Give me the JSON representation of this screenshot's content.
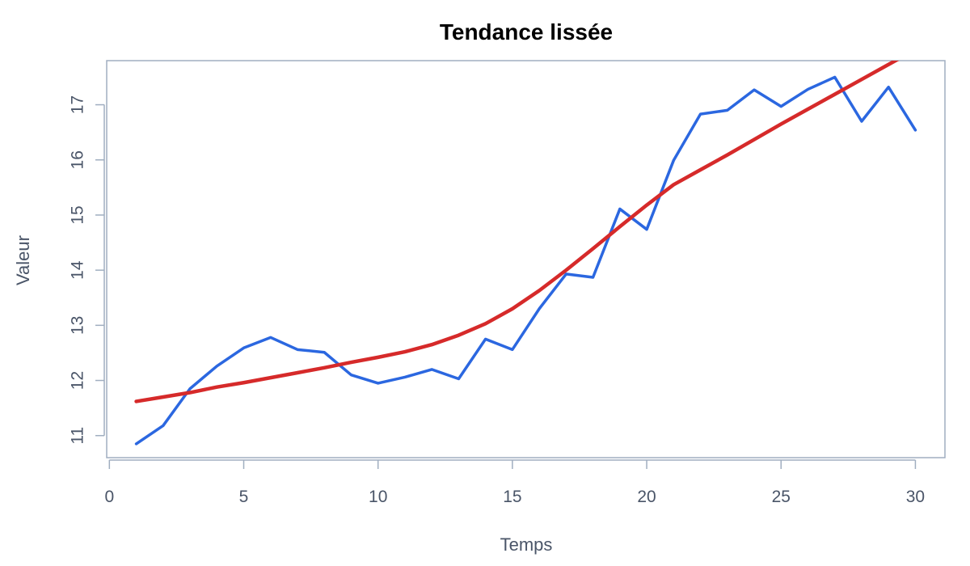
{
  "chart_data": {
    "type": "line",
    "title": "Tendance lissée",
    "xlabel": "Temps",
    "ylabel": "Valeur",
    "xlim": [
      -0.1,
      31.1
    ],
    "ylim": [
      10.6,
      17.8
    ],
    "x_ticks": [
      0,
      5,
      10,
      15,
      20,
      25,
      30
    ],
    "y_ticks": [
      11,
      12,
      13,
      14,
      15,
      16,
      17
    ],
    "grid": false,
    "series": [
      {
        "color": "#2b67e0",
        "x": [
          1,
          2,
          3,
          4,
          5,
          6,
          7,
          8,
          9,
          10,
          11,
          12,
          13,
          14,
          15,
          16,
          17,
          18,
          19,
          20,
          21,
          22,
          23,
          24,
          25,
          26,
          27,
          28,
          29,
          30
        ],
        "values": [
          10.85,
          11.18,
          11.85,
          12.26,
          12.59,
          12.78,
          12.56,
          12.51,
          12.1,
          11.95,
          12.06,
          12.2,
          12.03,
          12.75,
          12.56,
          13.3,
          13.93,
          13.87,
          15.11,
          14.74,
          15.99,
          16.83,
          16.9,
          17.27,
          16.97,
          17.28,
          17.5,
          16.7,
          17.32,
          16.54
        ]
      },
      {
        "color": "#d62a2a",
        "x": [
          1,
          2,
          3,
          4,
          5,
          6,
          7,
          8,
          9,
          10,
          11,
          12,
          13,
          14,
          15,
          16,
          17,
          18,
          19,
          20,
          21,
          22,
          23,
          24,
          25,
          26,
          27,
          28,
          29,
          30
        ],
        "values": [
          11.62,
          11.7,
          11.78,
          11.88,
          11.96,
          12.05,
          12.14,
          12.23,
          12.33,
          12.42,
          12.52,
          12.65,
          12.82,
          13.03,
          13.3,
          13.63,
          14.0,
          14.39,
          14.79,
          15.18,
          15.55,
          15.82,
          16.09,
          16.37,
          16.65,
          16.92,
          17.19,
          17.46,
          17.73,
          18.0
        ]
      }
    ]
  }
}
